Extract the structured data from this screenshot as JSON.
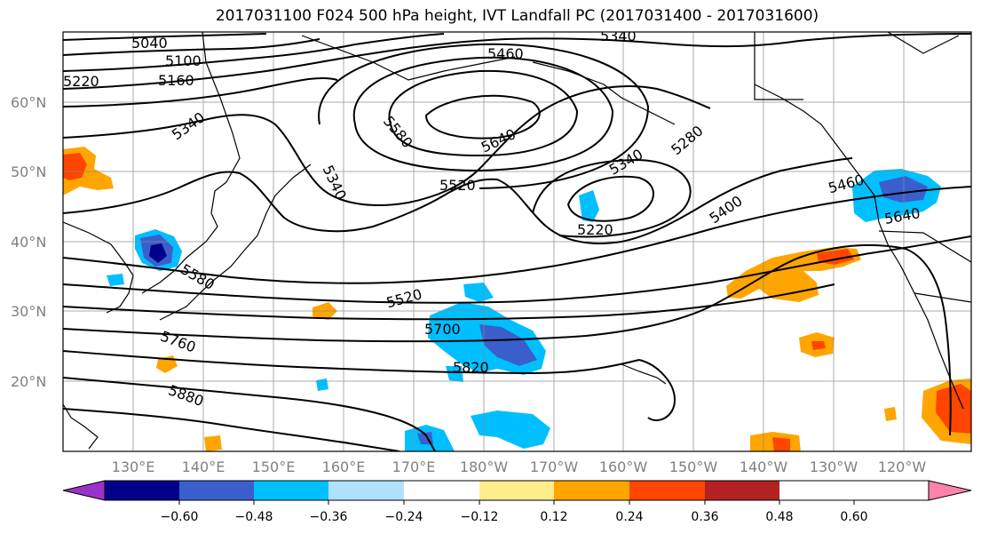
{
  "title": "2017031100 F024 500 hPa height, IVT Landfall PC (2017031400 - 2017031600)",
  "latitude_labels": [
    "60°N",
    "50°N",
    "40°N",
    "30°N",
    "20°N"
  ],
  "longitude_labels": [
    "130°E",
    "140°E",
    "150°E",
    "160°E",
    "170°E",
    "180°W",
    "170°W",
    "160°W",
    "150°W",
    "140°W",
    "130°W",
    "120°W"
  ],
  "colorbar": {
    "labels": [
      "−0.60",
      "−0.48",
      "−0.36",
      "−0.24",
      "−0.12",
      "0.12",
      "0.24",
      "0.36",
      "0.48",
      "0.60"
    ],
    "colors": [
      "#9932cc",
      "#00008b",
      "#3a5fcd",
      "#00bfff",
      "#b0e2ff",
      "#ffffff",
      "#ffec8b",
      "#ffa500",
      "#ff4500",
      "#b22222",
      "#ff82ab"
    ]
  },
  "contour_labels": [
    "5040",
    "5100",
    "5160",
    "5220",
    "5340",
    "5460",
    "5340",
    "5580",
    "5640",
    "5340",
    "5520",
    "5340",
    "5280",
    "5220",
    "5400",
    "5460",
    "5640",
    "5580",
    "5520",
    "5700",
    "5760",
    "5820",
    "5880"
  ]
}
